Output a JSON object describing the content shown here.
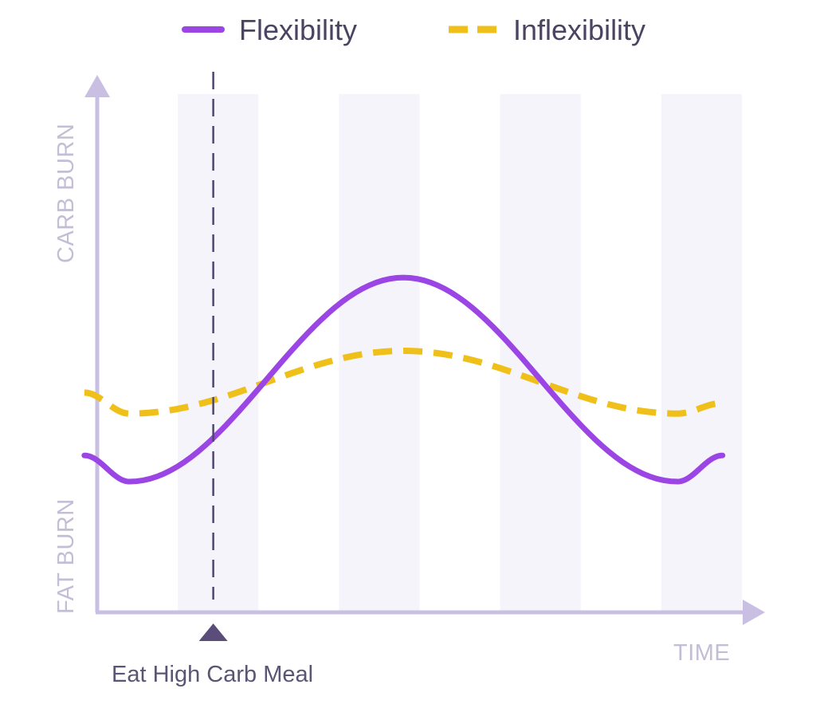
{
  "chart_data": {
    "type": "line",
    "title": "",
    "xlabel": "TIME",
    "ylabel_top": "CARB BURN",
    "ylabel_bottom": "FAT BURN",
    "x_range": [
      0,
      10
    ],
    "y_range": [
      0,
      10
    ],
    "grid": false,
    "legend_position": "top",
    "background_bands": true,
    "series": [
      {
        "name": "Flexibility",
        "style": "solid",
        "color": "#9b45e4",
        "points": [
          [
            -0.2,
            3.0
          ],
          [
            0.5,
            2.5
          ],
          [
            4.75,
            6.4
          ],
          [
            9.0,
            2.5
          ],
          [
            9.7,
            3.0
          ]
        ]
      },
      {
        "name": "Inflexibility",
        "style": "dashed",
        "color": "#f0c01a",
        "points": [
          [
            -0.2,
            4.2
          ],
          [
            0.5,
            3.8
          ],
          [
            4.75,
            5.0
          ],
          [
            9.0,
            3.8
          ],
          [
            9.7,
            4.0
          ]
        ]
      }
    ],
    "annotations": [
      {
        "text": "Eat High Carb Meal",
        "x": 1.8,
        "marker": "triangle-up",
        "vertical_line": "dashed"
      }
    ]
  },
  "colors": {
    "axis": "#c9bfe3",
    "band": "#f5f4fb",
    "marker": "#5a4d79"
  }
}
